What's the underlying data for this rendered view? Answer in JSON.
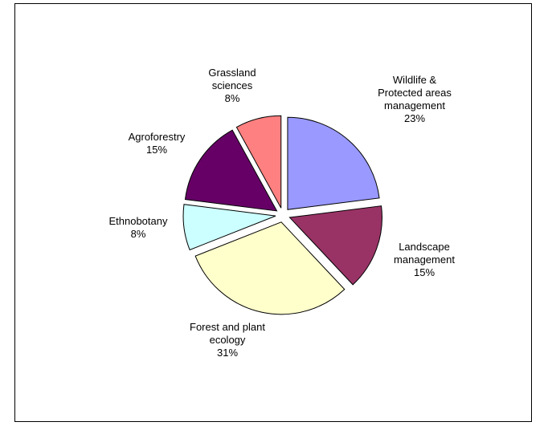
{
  "chart_data": {
    "type": "pie",
    "title": "",
    "legend": "none",
    "slices": [
      {
        "label_lines": [
          "Wildlife &",
          "Protected areas",
          "management"
        ],
        "pct": "23%",
        "value": 23,
        "color": "#9999ff"
      },
      {
        "label_lines": [
          "Landscape",
          "management"
        ],
        "pct": "15%",
        "value": 15,
        "color": "#993366"
      },
      {
        "label_lines": [
          "Forest and plant",
          "ecology"
        ],
        "pct": "31%",
        "value": 31,
        "color": "#ffffcc"
      },
      {
        "label_lines": [
          "Ethnobotany"
        ],
        "pct": "8%",
        "value": 8,
        "color": "#ccffff"
      },
      {
        "label_lines": [
          "Agroforestry"
        ],
        "pct": "15%",
        "value": 15,
        "color": "#660066"
      },
      {
        "label_lines": [
          "Grassland",
          "sciences"
        ],
        "pct": "8%",
        "value": 8,
        "color": "#ff8080"
      }
    ]
  }
}
